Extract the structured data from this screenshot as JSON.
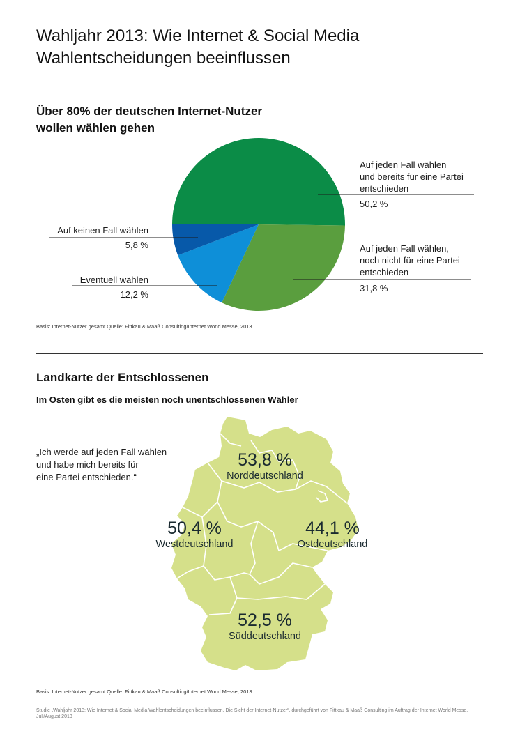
{
  "title_lines": [
    "Wahljahr 2013: Wie Internet & Social Media",
    "Wahlentscheidungen beeinflussen"
  ],
  "pie_section": {
    "title_lines": [
      "Über 80% der deutschen Internet-Nutzer",
      "wollen wählen gehen"
    ],
    "source": "Basis: Internet-Nutzer gesamt     Quelle: Fittkau & Maaß Consulting/Internet World Messe, 2013"
  },
  "chart_data": [
    {
      "type": "pie",
      "slices": [
        {
          "label": [
            "Auf jeden Fall wählen",
            "und bereits für eine Partei",
            "entschieden"
          ],
          "value": 50.2,
          "value_label": "50,2 %",
          "color": "#0b8c47"
        },
        {
          "label": [
            "Auf jeden Fall wählen,",
            "noch nicht für eine Partei",
            "entschieden"
          ],
          "value": 31.8,
          "value_label": "31,8 %",
          "color": "#5a9e3e"
        },
        {
          "label": [
            "Eventuell wählen"
          ],
          "value": 12.2,
          "value_label": "12,2 %",
          "color": "#0e8fd8"
        },
        {
          "label": [
            "Auf keinen Fall wählen"
          ],
          "value": 5.8,
          "value_label": "5,8 %",
          "color": "#0759a9"
        }
      ]
    },
    {
      "type": "map",
      "regions": [
        {
          "name": "Norddeutschland",
          "value": 53.8,
          "value_label": "53,8 %"
        },
        {
          "name": "Westdeutschland",
          "value": 50.4,
          "value_label": "50,4 %"
        },
        {
          "name": "Ostdeutschland",
          "value": 44.1,
          "value_label": "44,1 %"
        },
        {
          "name": "Süddeutschland",
          "value": 52.5,
          "value_label": "52,5 %"
        }
      ]
    }
  ],
  "map_section": {
    "title": "Landkarte der Entschlossenen",
    "subtitle": "Im Osten gibt es die meisten noch unentschlossenen Wähler",
    "quote_lines": [
      "„Ich werde auf jeden Fall wählen",
      "und habe mich bereits für",
      "eine Partei entschieden.“"
    ],
    "source": "Basis: Internet-Nutzer gesamt     Quelle: Fittkau & Maaß Consulting/Internet World Messe, 2013",
    "map_color": "#d5e08a",
    "border_color": "#ffffff"
  },
  "footnote": "Studie „Wahljahr 2013: Wie Internet & Social Media Wahlentscheidungen beeinflussen. Die Sicht der Internet-Nutzer“, durchgeführt von Fittkau & Maaß Consulting im Auftrag der Internet World Messe, Juli/August 2013"
}
